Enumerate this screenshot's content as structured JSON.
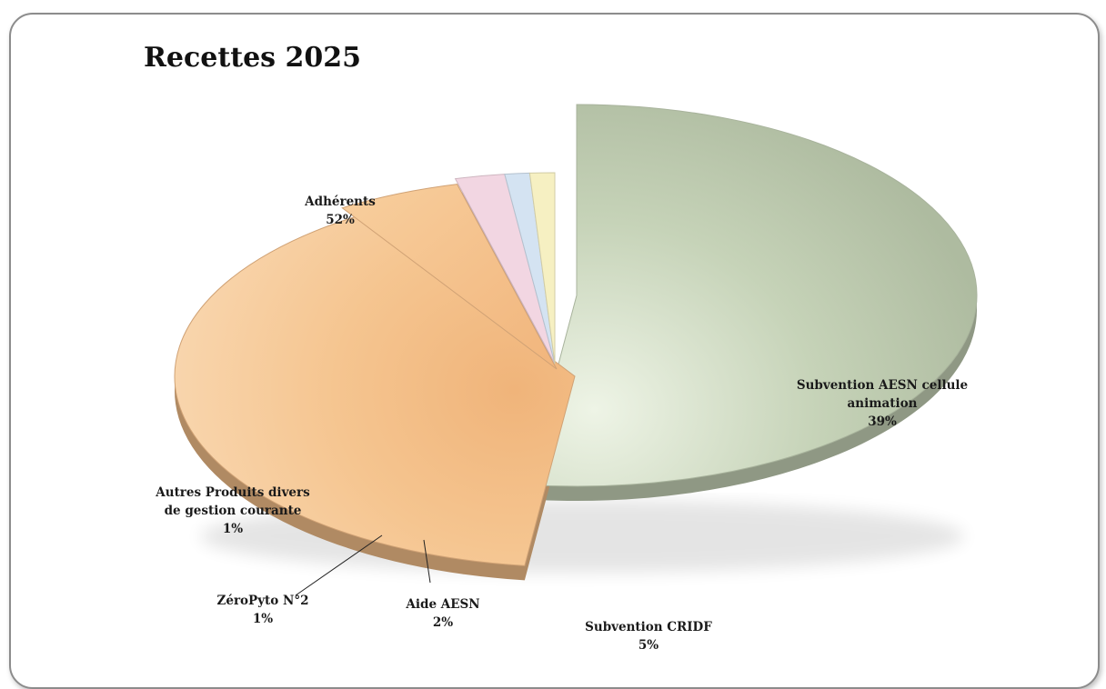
{
  "chart_data": {
    "type": "pie",
    "title": "Recettes 2025",
    "slices": [
      {
        "label": "Adhérents",
        "value": 52,
        "value_label": "52%",
        "color": "#c6d3b8"
      },
      {
        "label": "Subvention AESN cellule animation",
        "value": 39,
        "value_label": "39%",
        "color": "#f5bf8a"
      },
      {
        "label": "Subvention CRIDF",
        "value": 5,
        "value_label": "5%",
        "color": "#f5bf8a"
      },
      {
        "label": "Aide AESN",
        "value": 2,
        "value_label": "2%",
        "color": "#f2d6e2"
      },
      {
        "label": "ZéroPyto N°2",
        "value": 1,
        "value_label": "1%",
        "color": "#d4e3f2"
      },
      {
        "label": "Autres Produits divers de gestion courante",
        "value": 1,
        "value_label": "1%",
        "color": "#f6f0c2"
      }
    ],
    "legend": "none"
  }
}
